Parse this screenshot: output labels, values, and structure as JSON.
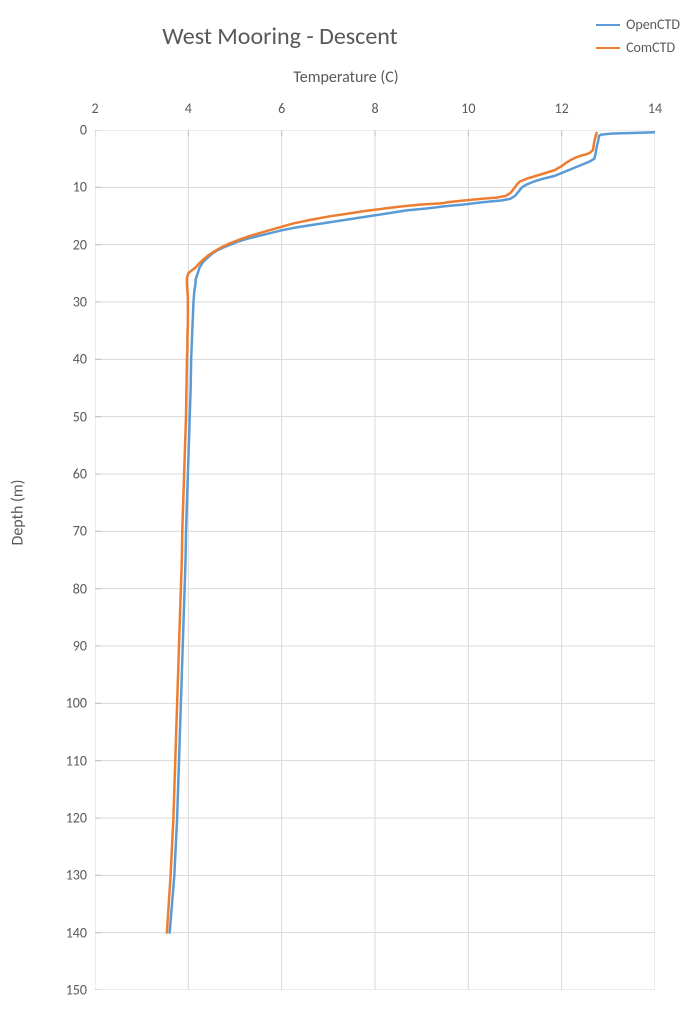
{
  "chart": {
    "type": "line",
    "title": "West Mooring - Descent",
    "x_axis_label": "Temperature (C)",
    "y_axis_label": "Depth (m)",
    "title_fontsize": 24,
    "axis_label_fontsize": 16,
    "tick_fontsize": 14,
    "background_color": "#ffffff",
    "grid_color": "#d9d9d9",
    "axis_tick_color": "#bfbfbf",
    "text_color": "#595959",
    "line_width": 2.5,
    "x": {
      "min": 2,
      "max": 14,
      "step": 2,
      "position": "top"
    },
    "y": {
      "min": 0,
      "max": 150,
      "step": 10,
      "reversed": true
    },
    "legend": {
      "position": "top-right",
      "items": [
        {
          "label": "OpenCTD",
          "color": "#5b9bd5"
        },
        {
          "label": "ComCTD",
          "color": "#ed7d31"
        }
      ]
    },
    "series": [
      {
        "name": "OpenCTD",
        "color": "#5b9bd5",
        "points": [
          [
            14.0,
            0.4
          ],
          [
            13.6,
            0.5
          ],
          [
            13.1,
            0.6
          ],
          [
            12.85,
            0.8
          ],
          [
            12.8,
            1.0
          ],
          [
            12.78,
            2.0
          ],
          [
            12.75,
            3.0
          ],
          [
            12.73,
            4.0
          ],
          [
            12.7,
            5.0
          ],
          [
            12.6,
            5.5
          ],
          [
            12.45,
            6.0
          ],
          [
            12.3,
            6.5
          ],
          [
            12.15,
            7.0
          ],
          [
            12.0,
            7.5
          ],
          [
            11.85,
            8.0
          ],
          [
            11.6,
            8.5
          ],
          [
            11.4,
            9.0
          ],
          [
            11.25,
            9.5
          ],
          [
            11.15,
            10.0
          ],
          [
            11.1,
            10.5
          ],
          [
            11.05,
            11.0
          ],
          [
            11.0,
            11.5
          ],
          [
            10.9,
            12.0
          ],
          [
            10.7,
            12.3
          ],
          [
            10.3,
            12.6
          ],
          [
            9.9,
            13.0
          ],
          [
            9.5,
            13.3
          ],
          [
            9.1,
            13.7
          ],
          [
            8.7,
            14.0
          ],
          [
            8.3,
            14.5
          ],
          [
            7.9,
            15.0
          ],
          [
            7.5,
            15.5
          ],
          [
            7.1,
            16.0
          ],
          [
            6.7,
            16.5
          ],
          [
            6.3,
            17.0
          ],
          [
            6.0,
            17.5
          ],
          [
            5.75,
            18.0
          ],
          [
            5.5,
            18.5
          ],
          [
            5.25,
            19.0
          ],
          [
            5.05,
            19.5
          ],
          [
            4.9,
            20.0
          ],
          [
            4.75,
            20.5
          ],
          [
            4.62,
            21.0
          ],
          [
            4.52,
            21.5
          ],
          [
            4.45,
            22.0
          ],
          [
            4.38,
            22.5
          ],
          [
            4.32,
            23.0
          ],
          [
            4.28,
            23.5
          ],
          [
            4.24,
            24.0
          ],
          [
            4.22,
            24.5
          ],
          [
            4.2,
            25.0
          ],
          [
            4.18,
            25.5
          ],
          [
            4.16,
            26.0
          ],
          [
            4.15,
            27.0
          ],
          [
            4.13,
            28.0
          ],
          [
            4.12,
            29.0
          ],
          [
            4.11,
            30.0
          ],
          [
            4.1,
            32.0
          ],
          [
            4.09,
            34.0
          ],
          [
            4.08,
            36.0
          ],
          [
            4.07,
            38.0
          ],
          [
            4.06,
            40.0
          ],
          [
            4.05,
            45.0
          ],
          [
            4.03,
            50.0
          ],
          [
            4.01,
            55.0
          ],
          [
            3.99,
            60.0
          ],
          [
            3.97,
            65.0
          ],
          [
            3.95,
            70.0
          ],
          [
            3.94,
            75.0
          ],
          [
            3.92,
            80.0
          ],
          [
            3.9,
            85.0
          ],
          [
            3.88,
            90.0
          ],
          [
            3.86,
            95.0
          ],
          [
            3.84,
            100.0
          ],
          [
            3.82,
            105.0
          ],
          [
            3.8,
            110.0
          ],
          [
            3.78,
            115.0
          ],
          [
            3.76,
            120.0
          ],
          [
            3.73,
            125.0
          ],
          [
            3.7,
            130.0
          ],
          [
            3.65,
            135.0
          ],
          [
            3.6,
            140.0
          ]
        ]
      },
      {
        "name": "ComCTD",
        "color": "#ed7d31",
        "points": [
          [
            12.75,
            0.5
          ],
          [
            12.73,
            1.0
          ],
          [
            12.7,
            2.0
          ],
          [
            12.68,
            3.0
          ],
          [
            12.67,
            3.5
          ],
          [
            12.6,
            4.0
          ],
          [
            12.5,
            4.3
          ],
          [
            12.4,
            4.5
          ],
          [
            12.3,
            4.8
          ],
          [
            12.2,
            5.2
          ],
          [
            12.1,
            5.7
          ],
          [
            12.0,
            6.3
          ],
          [
            11.85,
            7.0
          ],
          [
            11.65,
            7.5
          ],
          [
            11.45,
            8.0
          ],
          [
            11.25,
            8.5
          ],
          [
            11.1,
            9.0
          ],
          [
            11.04,
            9.5
          ],
          [
            11.0,
            10.0
          ],
          [
            10.95,
            10.5
          ],
          [
            10.9,
            11.0
          ],
          [
            10.8,
            11.5
          ],
          [
            10.6,
            11.8
          ],
          [
            10.3,
            12.0
          ],
          [
            9.9,
            12.3
          ],
          [
            9.55,
            12.6
          ],
          [
            9.5,
            12.7
          ],
          [
            9.4,
            12.8
          ],
          [
            9.0,
            13.0
          ],
          [
            8.6,
            13.3
          ],
          [
            8.2,
            13.7
          ],
          [
            7.8,
            14.1
          ],
          [
            7.4,
            14.6
          ],
          [
            7.0,
            15.1
          ],
          [
            6.6,
            15.7
          ],
          [
            6.25,
            16.3
          ],
          [
            5.95,
            17.0
          ],
          [
            5.65,
            17.7
          ],
          [
            5.35,
            18.4
          ],
          [
            5.1,
            19.1
          ],
          [
            4.88,
            19.8
          ],
          [
            4.7,
            20.5
          ],
          [
            4.55,
            21.2
          ],
          [
            4.42,
            21.9
          ],
          [
            4.32,
            22.6
          ],
          [
            4.23,
            23.3
          ],
          [
            4.15,
            24.0
          ],
          [
            4.07,
            24.5
          ],
          [
            4.0,
            25.0
          ],
          [
            3.98,
            25.5
          ],
          [
            3.97,
            26.0
          ],
          [
            3.97,
            27.0
          ],
          [
            3.98,
            28.0
          ],
          [
            3.99,
            29.0
          ],
          [
            3.99,
            30.0
          ],
          [
            3.99,
            32.0
          ],
          [
            3.99,
            34.0
          ],
          [
            3.98,
            36.0
          ],
          [
            3.98,
            38.0
          ],
          [
            3.97,
            40.0
          ],
          [
            3.96,
            45.0
          ],
          [
            3.95,
            50.0
          ],
          [
            3.93,
            55.0
          ],
          [
            3.91,
            60.0
          ],
          [
            3.89,
            65.0
          ],
          [
            3.87,
            70.0
          ],
          [
            3.86,
            75.0
          ],
          [
            3.84,
            80.0
          ],
          [
            3.82,
            85.0
          ],
          [
            3.8,
            90.0
          ],
          [
            3.78,
            95.0
          ],
          [
            3.76,
            100.0
          ],
          [
            3.74,
            105.0
          ],
          [
            3.72,
            110.0
          ],
          [
            3.7,
            115.0
          ],
          [
            3.68,
            120.0
          ],
          [
            3.65,
            125.0
          ],
          [
            3.62,
            130.0
          ],
          [
            3.58,
            135.0
          ],
          [
            3.54,
            140.0
          ]
        ]
      }
    ]
  }
}
